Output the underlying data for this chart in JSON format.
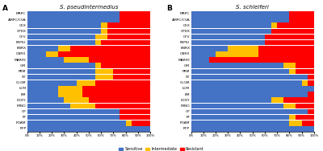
{
  "panel_A_title": "S. pseudintermedius",
  "panel_B_title": "S. schleiferi",
  "panel_A_label": "A",
  "panel_B_label": "B",
  "categories_A": [
    "MRPC",
    "AMPC/CVA",
    "CEX",
    "CPDX",
    "CFV",
    "FEPIU",
    "ENRX",
    "OBRX",
    "MARFE",
    "GM",
    "PRM",
    "ST",
    "CLGM",
    "LCM",
    "EM",
    "DCKY",
    "MINO",
    "CP",
    "FF",
    "FOAM",
    "RFP"
  ],
  "categories_B": [
    "MRPC",
    "AMPC/CVA",
    "CEX",
    "CPDX",
    "CFV",
    "FEPIU",
    "ENRX",
    "OBRX",
    "MARFE",
    "GM",
    "PRM",
    "ST",
    "CLGM",
    "LCM",
    "EM",
    "DCKY",
    "MINO",
    "CP",
    "FF",
    "FOAM",
    "RFP"
  ],
  "sensitive_A": [
    75,
    75,
    60,
    60,
    55,
    55,
    25,
    15,
    30,
    55,
    55,
    55,
    40,
    25,
    25,
    30,
    35,
    75,
    75,
    80,
    100
  ],
  "intermediate_A": [
    0,
    0,
    5,
    5,
    10,
    5,
    10,
    10,
    20,
    5,
    15,
    15,
    15,
    20,
    20,
    20,
    20,
    0,
    0,
    5,
    0
  ],
  "resistant_A": [
    25,
    25,
    35,
    35,
    35,
    40,
    65,
    75,
    50,
    40,
    30,
    30,
    45,
    55,
    55,
    50,
    45,
    25,
    25,
    15,
    0
  ],
  "sensitive_B": [
    80,
    80,
    65,
    65,
    60,
    60,
    30,
    20,
    15,
    75,
    80,
    95,
    90,
    100,
    95,
    65,
    75,
    95,
    80,
    80,
    100
  ],
  "intermediate_B": [
    0,
    0,
    5,
    0,
    0,
    0,
    25,
    35,
    0,
    10,
    5,
    0,
    5,
    0,
    0,
    10,
    10,
    0,
    5,
    10,
    0
  ],
  "resistant_B": [
    20,
    20,
    30,
    35,
    40,
    40,
    45,
    45,
    85,
    15,
    15,
    5,
    5,
    0,
    5,
    25,
    15,
    5,
    15,
    10,
    0
  ],
  "color_sensitive": "#4472C4",
  "color_intermediate": "#FFC000",
  "color_resistant": "#FF0000",
  "legend_labels": [
    "Sensitive",
    "Intermediate",
    "Resistant"
  ],
  "xticks": [
    0,
    10,
    20,
    30,
    40,
    50,
    60,
    70,
    80,
    90,
    100
  ],
  "xtick_labels": [
    "0%",
    "10%",
    "20%",
    "30%",
    "40%",
    "50%",
    "60%",
    "70%",
    "80%",
    "90%",
    "100%"
  ]
}
